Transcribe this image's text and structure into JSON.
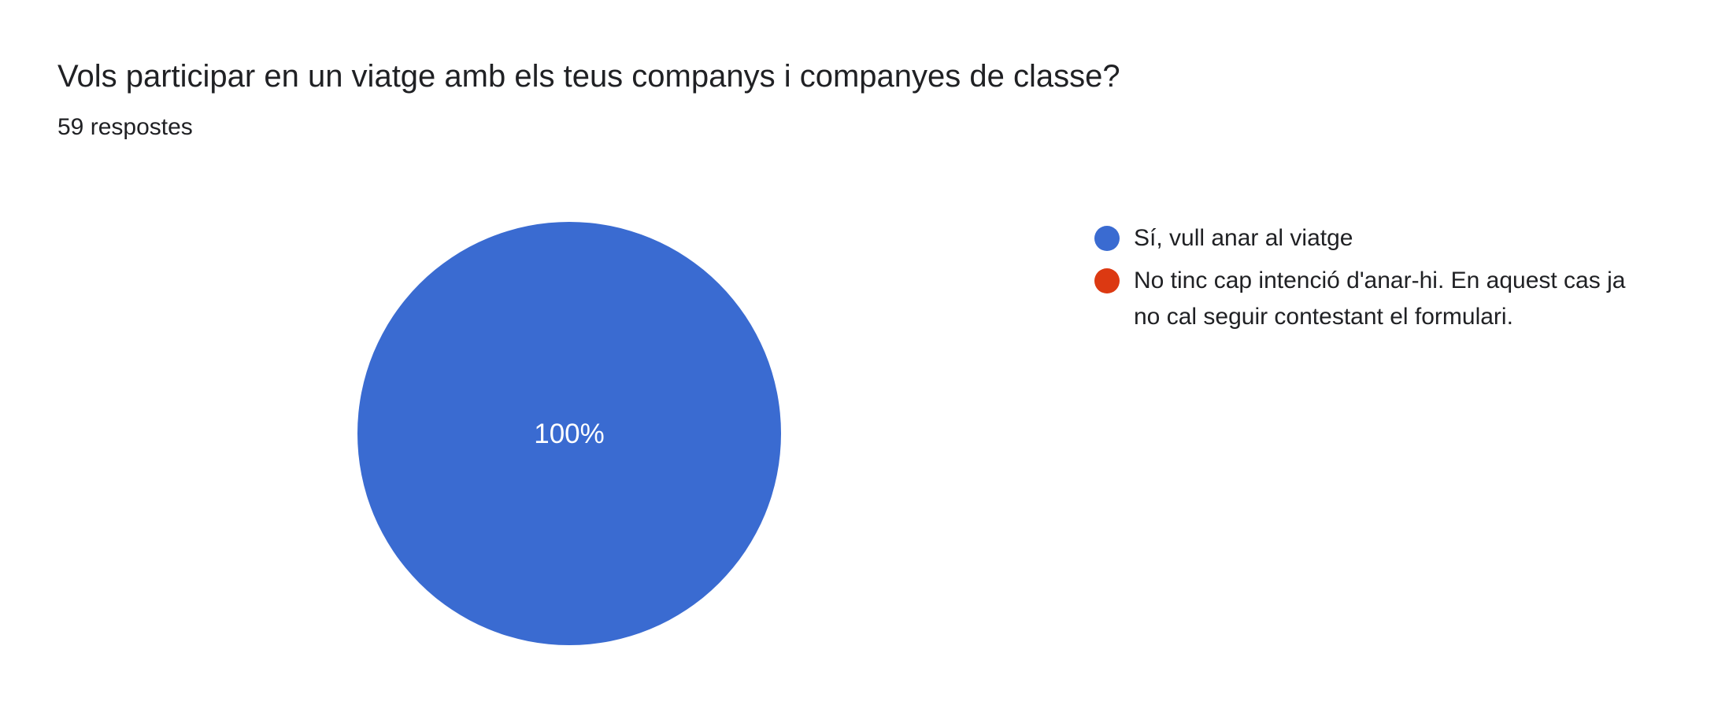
{
  "question": {
    "title": "Vols participar en un viatge amb els teus companys i companyes de classe?",
    "responses_label": "59 respostes"
  },
  "chart_data": {
    "type": "pie",
    "title": "Vols participar en un viatge amb els teus companys i companyes de classe?",
    "subtitle": "59 respostes",
    "total_responses": 59,
    "legend_position": "right",
    "center_label": "100%",
    "slices": [
      {
        "label": "Sí, vull anar al viatge",
        "percent": 100,
        "color": "#3A6BD1"
      },
      {
        "label": "No tinc cap intenció d'anar-hi. En aquest cas ja no cal seguir contestant el formulari.",
        "percent": 0,
        "color": "#DC3912"
      }
    ]
  },
  "colors": {
    "text": "#202124",
    "background": "#ffffff",
    "pie_label": "#ffffff"
  }
}
